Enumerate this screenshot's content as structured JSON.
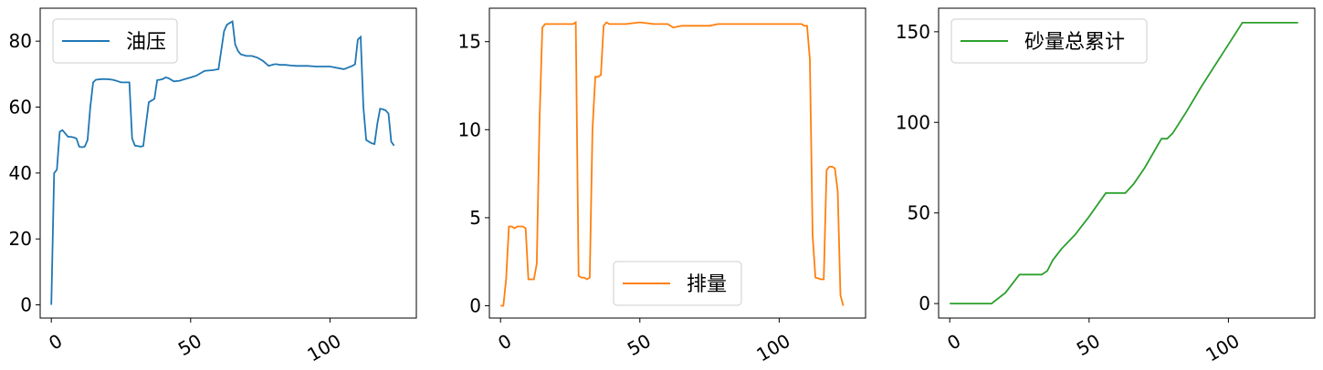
{
  "chart_data": [
    {
      "type": "line",
      "color": "#1f77b4",
      "legend_position": "top-left",
      "x_ticks": [
        0,
        50,
        100
      ],
      "y_ticks": [
        0,
        20,
        40,
        60,
        80
      ],
      "xlim": [
        -4,
        131
      ],
      "ylim": [
        -4,
        90
      ],
      "series": [
        {
          "name": "油压",
          "x": [
            0,
            1,
            2,
            3,
            4,
            5,
            6,
            7,
            8,
            9,
            10,
            11,
            12,
            13,
            14,
            15,
            16,
            18,
            20,
            22,
            24,
            25,
            26,
            27,
            28,
            29,
            30,
            31,
            32,
            33,
            34,
            35,
            36,
            37,
            38,
            39,
            40,
            41,
            42,
            44,
            46,
            48,
            50,
            52,
            55,
            58,
            60,
            62,
            63,
            64,
            65,
            66,
            67,
            68,
            70,
            72,
            74,
            76,
            78,
            80,
            81,
            82,
            84,
            86,
            88,
            90,
            92,
            95,
            100,
            105,
            108,
            109,
            110,
            111,
            112,
            113,
            114,
            115,
            116,
            117,
            118,
            119,
            120,
            121,
            122,
            123
          ],
          "values": [
            0,
            40,
            41,
            52.5,
            53,
            52,
            51,
            51,
            50.8,
            50.5,
            48,
            47.8,
            48,
            50,
            60,
            67.5,
            68.3,
            68.5,
            68.5,
            68.3,
            67.8,
            67.5,
            67.5,
            67.5,
            67.5,
            50.5,
            48.3,
            48.2,
            48,
            48.2,
            55,
            61.5,
            62,
            62.5,
            68.2,
            68.3,
            68.5,
            69,
            68.8,
            67.8,
            68,
            68.5,
            69,
            69.5,
            71,
            71.2,
            71.5,
            83,
            85,
            85.5,
            86,
            79,
            77,
            76,
            75.5,
            75.5,
            75,
            74,
            72.5,
            73,
            73,
            72.8,
            72.8,
            72.6,
            72.5,
            72.5,
            72.5,
            72.3,
            72.3,
            71.5,
            72.5,
            73,
            80.5,
            81.3,
            60,
            50,
            49.5,
            49,
            48.8,
            55,
            59.5,
            59.3,
            59,
            58,
            49.5,
            48.3
          ]
        }
      ]
    },
    {
      "type": "line",
      "color": "#ff7f0e",
      "legend_position": "bottom-center",
      "x_ticks": [
        0,
        50,
        100
      ],
      "y_ticks": [
        0,
        5,
        10,
        15
      ],
      "xlim": [
        -4,
        131
      ],
      "ylim": [
        -0.7,
        16.9
      ],
      "series": [
        {
          "name": "排量",
          "x": [
            0,
            1,
            2,
            3,
            4,
            5,
            6,
            7,
            8,
            9,
            10,
            11,
            12,
            13,
            14,
            15,
            16,
            18,
            20,
            22,
            24,
            26,
            27,
            28,
            29,
            30,
            31,
            32,
            33,
            34,
            35,
            36,
            37,
            38,
            39,
            40,
            42,
            45,
            50,
            55,
            60,
            62,
            65,
            70,
            75,
            78,
            80,
            85,
            90,
            95,
            100,
            105,
            108,
            109,
            110,
            111,
            112,
            113,
            114,
            115,
            116,
            117,
            118,
            119,
            120,
            121,
            122,
            123
          ],
          "values": [
            0,
            0,
            1.5,
            4.5,
            4.5,
            4.4,
            4.5,
            4.5,
            4.5,
            4.4,
            1.5,
            1.5,
            1.5,
            2.4,
            10.5,
            15.8,
            16.0,
            16.0,
            16.0,
            16.0,
            16.0,
            16.0,
            16.1,
            1.7,
            1.6,
            1.6,
            1.5,
            1.6,
            10,
            13,
            13,
            13.1,
            15.9,
            16.1,
            16.0,
            16.0,
            16.0,
            16.0,
            16.1,
            16.0,
            16.0,
            15.8,
            15.9,
            15.9,
            15.9,
            16.0,
            16.0,
            16.0,
            16.0,
            16.0,
            16.0,
            16.0,
            16.0,
            15.9,
            15.9,
            14.0,
            4.0,
            1.6,
            1.55,
            1.5,
            1.5,
            7.7,
            7.9,
            7.9,
            7.8,
            6.5,
            0.6,
            0
          ]
        }
      ]
    },
    {
      "type": "line",
      "color": "#2ca02c",
      "legend_position": "top-left",
      "x_ticks": [
        0,
        50,
        100
      ],
      "y_ticks": [
        0,
        50,
        100,
        150
      ],
      "xlim": [
        -4,
        131
      ],
      "ylim": [
        -8,
        163
      ],
      "series": [
        {
          "name": "砂量总累计",
          "x": [
            0,
            5,
            10,
            15,
            20,
            25,
            27,
            30,
            33,
            35,
            37,
            40,
            45,
            50,
            56,
            60,
            63,
            66,
            70,
            76,
            78,
            80,
            85,
            90,
            95,
            100,
            105,
            107,
            110,
            115,
            120,
            125
          ],
          "values": [
            0,
            0,
            0,
            0,
            6,
            16,
            16,
            16,
            16,
            18,
            24,
            30,
            38,
            48,
            61,
            61,
            61,
            66,
            75,
            91,
            91,
            94,
            106,
            119,
            131,
            143,
            155,
            155,
            155,
            155,
            155,
            155
          ]
        }
      ]
    }
  ]
}
